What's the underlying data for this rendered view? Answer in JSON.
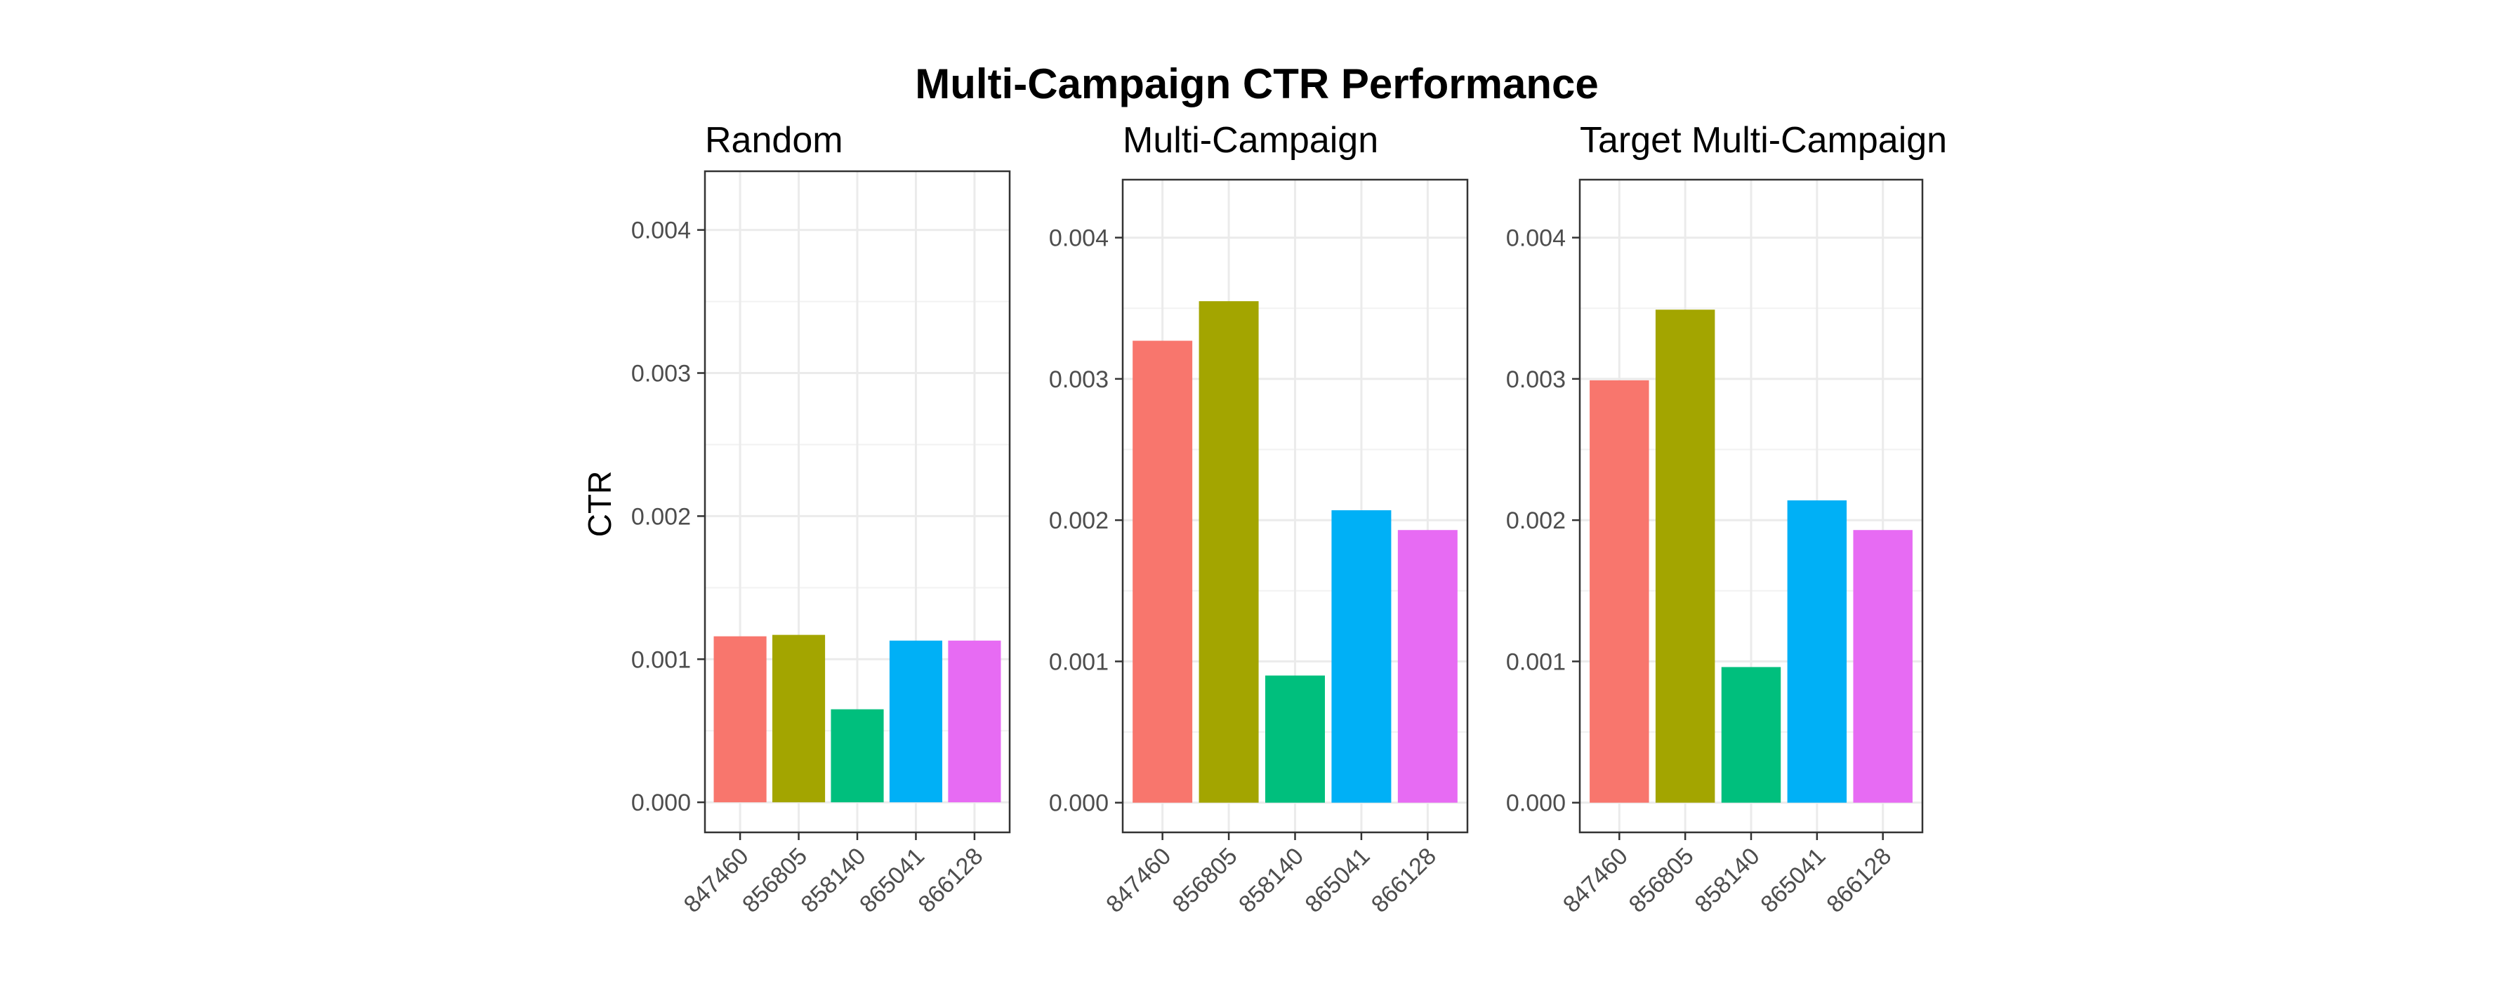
{
  "chart_data": {
    "type": "bar",
    "title": "Multi-Campaign CTR Performance",
    "ylabel": "CTR",
    "xlabel": "",
    "categories": [
      "847460",
      "856805",
      "858140",
      "865041",
      "866128"
    ],
    "colors": [
      "#F8766D",
      "#A3A500",
      "#00BF7D",
      "#00B0F6",
      "#E76BF3"
    ],
    "yticks": [
      "0.000",
      "0.001",
      "0.002",
      "0.003",
      "0.004"
    ],
    "ylim": [
      0,
      0.0042
    ],
    "grid": true,
    "legend": "none",
    "panels": [
      {
        "title": "Random",
        "values": [
          0.00116,
          0.00117,
          0.00065,
          0.00113,
          0.00113
        ]
      },
      {
        "title": "Multi-Campaign",
        "values": [
          0.00327,
          0.00355,
          0.0009,
          0.00207,
          0.00193
        ]
      },
      {
        "title": "Target Multi-Campaign",
        "values": [
          0.00299,
          0.00349,
          0.00096,
          0.00214,
          0.00193
        ]
      }
    ]
  }
}
